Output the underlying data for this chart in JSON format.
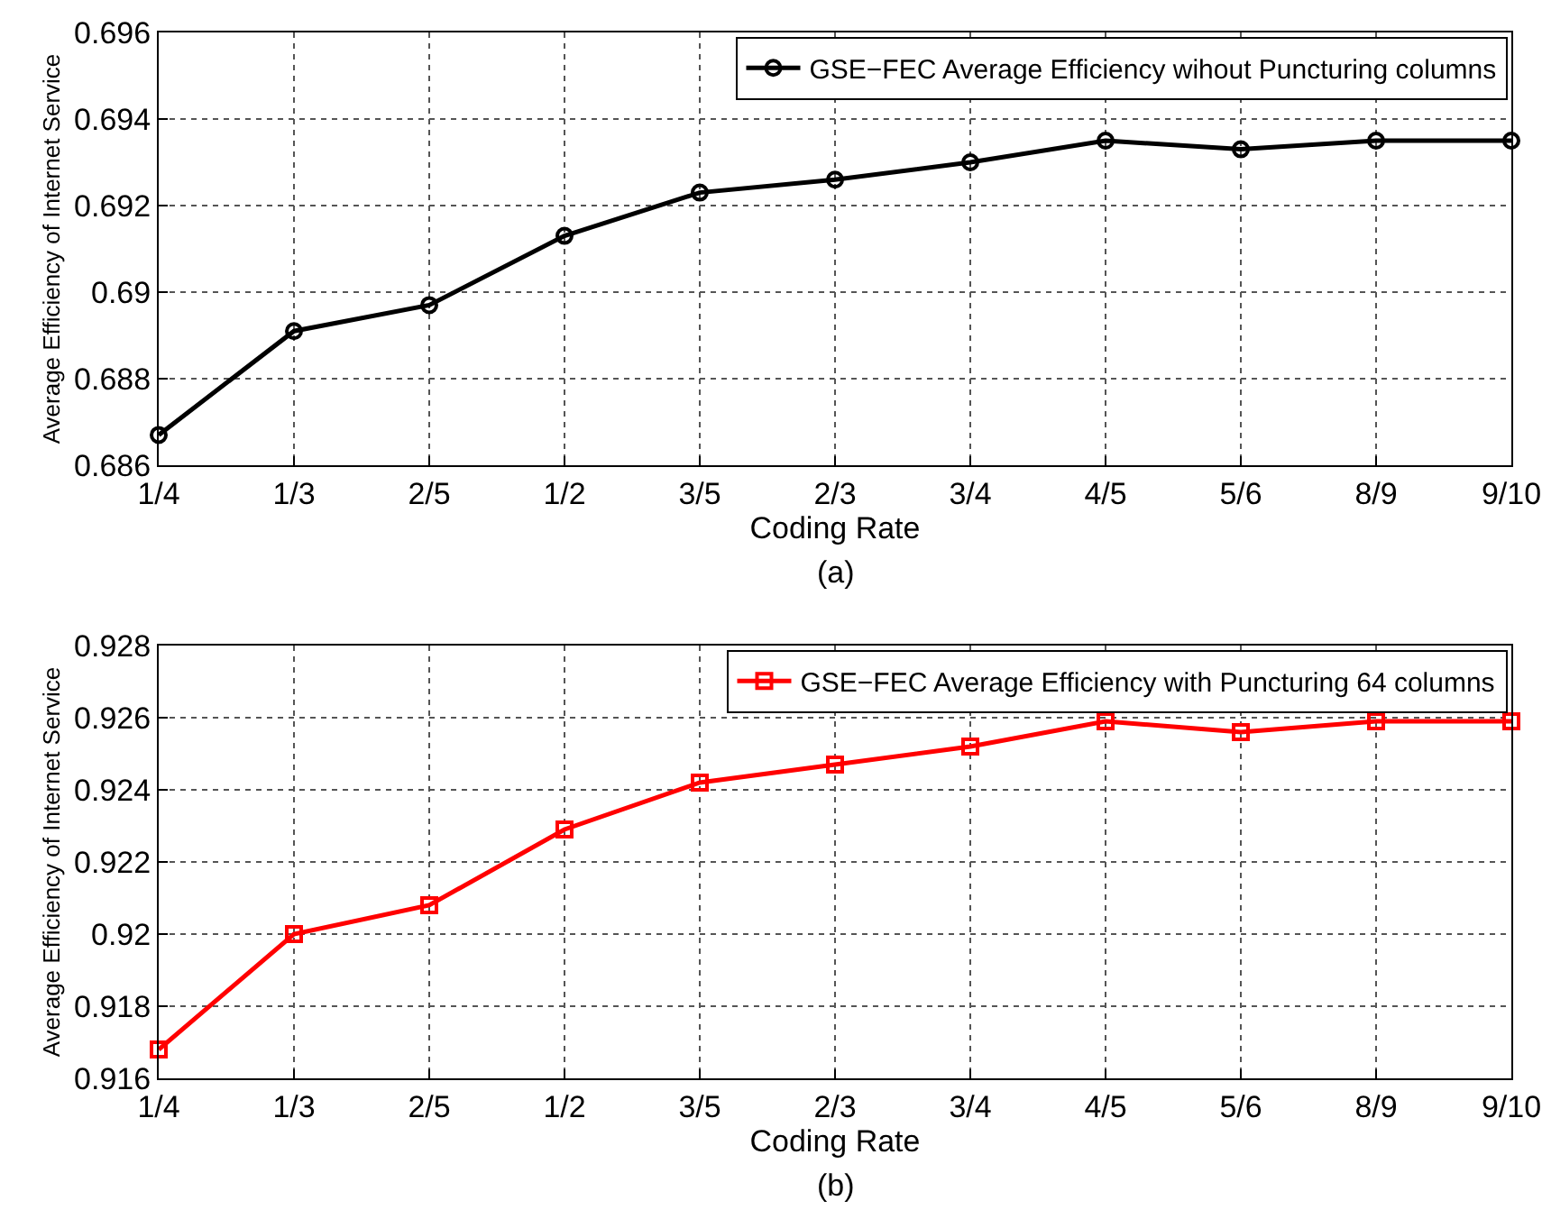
{
  "chart_data": [
    {
      "type": "line",
      "categories": [
        "1/4",
        "1/3",
        "2/5",
        "1/2",
        "3/5",
        "2/3",
        "3/4",
        "4/5",
        "5/6",
        "8/9",
        "9/10"
      ],
      "series": [
        {
          "name": "GSE−FEC Average Efficiency wihout Puncturing columns",
          "color": "#000000",
          "values": [
            0.6867,
            0.6891,
            0.6897,
            0.6913,
            0.6923,
            0.6926,
            0.693,
            0.6935,
            0.6933,
            0.6935,
            0.6935
          ]
        }
      ],
      "xlabel": "Coding Rate",
      "ylabel": "Average Efficiency of Internet Service",
      "annotations": [
        "(a)"
      ],
      "ylim": [
        0.686,
        0.696
      ],
      "yticks": [
        0.686,
        0.688,
        0.69,
        0.692,
        0.694,
        0.696
      ],
      "grid": true,
      "legend": "top right",
      "marker": "circle",
      "line_style": "solid"
    },
    {
      "type": "line",
      "categories": [
        "1/4",
        "1/3",
        "2/5",
        "1/2",
        "3/5",
        "2/3",
        "3/4",
        "4/5",
        "5/6",
        "8/9",
        "9/10"
      ],
      "series": [
        {
          "name": "GSE−FEC Average Efficiency with Puncturing 64 columns",
          "color": "#ff0000",
          "values": [
            0.9168,
            0.92,
            0.9208,
            0.9229,
            0.9242,
            0.9247,
            0.9252,
            0.9259,
            0.9256,
            0.9259,
            0.9259
          ]
        }
      ],
      "xlabel": "Coding Rate",
      "ylabel": "Average Efficiency of Internet Service",
      "annotations": [
        "(b)"
      ],
      "ylim": [
        0.916,
        0.928
      ],
      "yticks": [
        0.916,
        0.918,
        0.92,
        0.922,
        0.924,
        0.926,
        0.928
      ],
      "grid": true,
      "legend": "top right",
      "marker": "square",
      "line_style": "solid"
    }
  ]
}
